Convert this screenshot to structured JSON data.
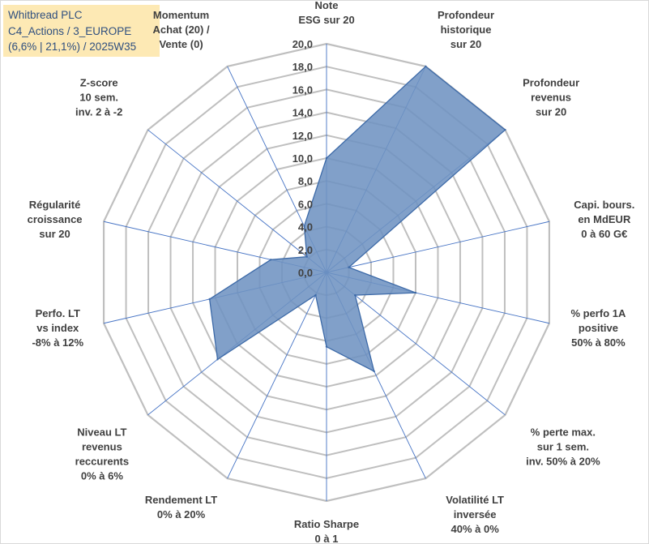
{
  "header": {
    "line1": "Whitbread PLC",
    "line2": "C4_Actions / 3_EUROPE",
    "line3": "(6,6% | 21,1%) / 2025W35"
  },
  "colors": {
    "fill": "#6f93c2",
    "stroke": "#3d6aa8",
    "grid": "#bfbfbf",
    "spoke": "#4472c4",
    "text": "#404040",
    "title_bg": "#fde9b4",
    "title_text": "#2f4f7f"
  },
  "chart_data": {
    "type": "radar",
    "rlim": [
      0,
      20
    ],
    "ticks": [
      "0,0",
      "2,0",
      "4,0",
      "6,0",
      "8,0",
      "10,0",
      "12,0",
      "14,0",
      "16,0",
      "18,0",
      "20,0"
    ],
    "grid": true,
    "legend": "none",
    "axes": [
      {
        "label": [
          "Note",
          "ESG sur 20"
        ]
      },
      {
        "label": [
          "Profondeur",
          "historique",
          "sur 20"
        ]
      },
      {
        "label": [
          "Profondeur",
          "revenus",
          "sur 20"
        ]
      },
      {
        "label": [
          "Capi. bours.",
          "en MdEUR",
          "0 à 60 G€"
        ]
      },
      {
        "label": [
          "% perfo 1A",
          "positive",
          "50% à 80%"
        ]
      },
      {
        "label": [
          "% perte max.",
          "sur 1 sem.",
          "inv. 50% à 20%"
        ]
      },
      {
        "label": [
          "Volatilité LT",
          "inversée",
          "40% à 0%"
        ]
      },
      {
        "label": [
          "Ratio Sharpe",
          "0 à 1"
        ]
      },
      {
        "label": [
          "Rendement LT",
          "0% à 20%"
        ]
      },
      {
        "label": [
          "Niveau LT",
          "revenus",
          "reccurents",
          "0% à 6%"
        ]
      },
      {
        "label": [
          "Perfo. LT",
          "vs index",
          "-8% à 12%"
        ]
      },
      {
        "label": [
          "Régularité",
          "croissance",
          "sur 20"
        ]
      },
      {
        "label": [
          "Z-score",
          "10 sem.",
          "inv. 2 à -2"
        ]
      },
      {
        "label": [
          "Momentum",
          "Achat (20) /",
          "Vente (0)"
        ]
      }
    ],
    "series": [
      {
        "values": [
          10.0,
          20.0,
          20.0,
          2.0,
          8.0,
          3.2,
          9.6,
          6.5,
          2.2,
          12.2,
          10.5,
          5.0,
          2.2,
          4.5
        ]
      }
    ]
  }
}
